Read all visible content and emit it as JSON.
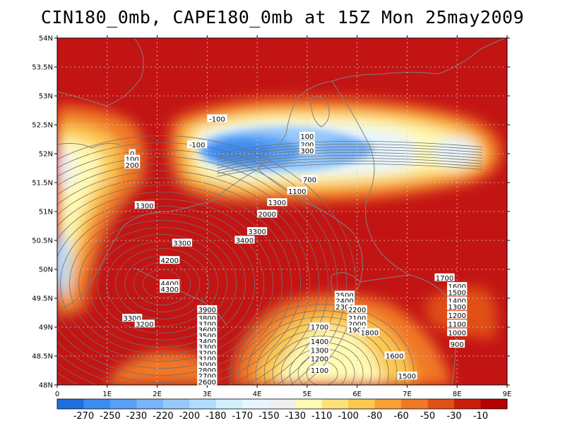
{
  "title": "CIN180_0mb, CAPE180_0mb at 15Z Mon 25may2009",
  "map": {
    "lon_range": [
      0,
      9
    ],
    "lat_range": [
      48,
      54
    ],
    "lon_ticks": [
      "0",
      "1E",
      "2E",
      "3E",
      "4E",
      "5E",
      "6E",
      "7E",
      "8E",
      "9E"
    ],
    "lat_ticks": [
      "48N",
      "48.5N",
      "49N",
      "49.5N",
      "50N",
      "50.5N",
      "51N",
      "51.5N",
      "52N",
      "52.5N",
      "53N",
      "53.5N",
      "54N"
    ],
    "grid": true,
    "background_color": "#c80000"
  },
  "colorbar": {
    "labels": [
      "-270",
      "-250",
      "-230",
      "-220",
      "-200",
      "-180",
      "-170",
      "-150",
      "-130",
      "-110",
      "-100",
      "-80",
      "-60",
      "-50",
      "-30",
      "-10"
    ],
    "colors": [
      "#1e6ee0",
      "#3c8cf0",
      "#5aa0f5",
      "#78b4f8",
      "#96c8fa",
      "#b4dcfc",
      "#d2f0fe",
      "#e6f5ff",
      "#f0f0f0",
      "#fffab4",
      "#fee17a",
      "#fcc850",
      "#f8a032",
      "#f07828",
      "#e05019",
      "#c81e0a",
      "#b40000"
    ]
  },
  "contour_labels": [
    {
      "text": "-100",
      "lon": 3.2,
      "lat": 52.6
    },
    {
      "text": "-100",
      "lon": 2.8,
      "lat": 52.15
    },
    {
      "text": "100",
      "lon": 5.0,
      "lat": 52.3
    },
    {
      "text": "200",
      "lon": 5.0,
      "lat": 52.15
    },
    {
      "text": "300",
      "lon": 5.0,
      "lat": 52.05
    },
    {
      "text": "700",
      "lon": 5.05,
      "lat": 51.55
    },
    {
      "text": "1100",
      "lon": 4.8,
      "lat": 51.35
    },
    {
      "text": "1300",
      "lon": 4.4,
      "lat": 51.15
    },
    {
      "text": "2000",
      "lon": 4.2,
      "lat": 50.95
    },
    {
      "text": "3300",
      "lon": 4.0,
      "lat": 50.65
    },
    {
      "text": "3400",
      "lon": 3.75,
      "lat": 50.5
    },
    {
      "text": "0",
      "lon": 1.5,
      "lat": 52.0
    },
    {
      "text": "100",
      "lon": 1.5,
      "lat": 51.9
    },
    {
      "text": "200",
      "lon": 1.5,
      "lat": 51.8
    },
    {
      "text": "1300",
      "lon": 1.75,
      "lat": 51.1
    },
    {
      "text": "3300",
      "lon": 2.5,
      "lat": 50.45
    },
    {
      "text": "4200",
      "lon": 2.25,
      "lat": 50.15
    },
    {
      "text": "4400",
      "lon": 2.25,
      "lat": 49.75
    },
    {
      "text": "4300",
      "lon": 2.25,
      "lat": 49.65
    },
    {
      "text": "3300",
      "lon": 1.5,
      "lat": 49.15
    },
    {
      "text": "3200",
      "lon": 1.75,
      "lat": 49.05
    },
    {
      "text": "3900",
      "lon": 3.0,
      "lat": 49.3
    },
    {
      "text": "3800",
      "lon": 3.0,
      "lat": 49.15
    },
    {
      "text": "3700",
      "lon": 3.0,
      "lat": 49.05
    },
    {
      "text": "3600",
      "lon": 3.0,
      "lat": 48.95
    },
    {
      "text": "3500",
      "lon": 3.0,
      "lat": 48.85
    },
    {
      "text": "3400",
      "lon": 3.0,
      "lat": 48.75
    },
    {
      "text": "3300",
      "lon": 3.0,
      "lat": 48.65
    },
    {
      "text": "3200",
      "lon": 3.0,
      "lat": 48.55
    },
    {
      "text": "3100",
      "lon": 3.0,
      "lat": 48.45
    },
    {
      "text": "3000",
      "lon": 3.0,
      "lat": 48.35
    },
    {
      "text": "2800",
      "lon": 3.0,
      "lat": 48.25
    },
    {
      "text": "2700",
      "lon": 3.0,
      "lat": 48.15
    },
    {
      "text": "2600",
      "lon": 3.0,
      "lat": 48.05
    },
    {
      "text": "2500",
      "lon": 5.75,
      "lat": 49.55
    },
    {
      "text": "2400",
      "lon": 5.75,
      "lat": 49.45
    },
    {
      "text": "2300",
      "lon": 5.75,
      "lat": 49.35
    },
    {
      "text": "2200",
      "lon": 6.0,
      "lat": 49.3
    },
    {
      "text": "2100",
      "lon": 6.0,
      "lat": 49.15
    },
    {
      "text": "2000",
      "lon": 6.0,
      "lat": 49.05
    },
    {
      "text": "1900",
      "lon": 6.0,
      "lat": 48.95
    },
    {
      "text": "1800",
      "lon": 6.25,
      "lat": 48.9
    },
    {
      "text": "1700",
      "lon": 5.25,
      "lat": 49.0
    },
    {
      "text": "1400",
      "lon": 5.25,
      "lat": 48.75
    },
    {
      "text": "1300",
      "lon": 5.25,
      "lat": 48.6
    },
    {
      "text": "1200",
      "lon": 5.25,
      "lat": 48.45
    },
    {
      "text": "1100",
      "lon": 5.25,
      "lat": 48.25
    },
    {
      "text": "1600",
      "lon": 6.75,
      "lat": 48.5
    },
    {
      "text": "1500",
      "lon": 7.0,
      "lat": 48.15
    },
    {
      "text": "1700",
      "lon": 7.75,
      "lat": 49.85
    },
    {
      "text": "1600",
      "lon": 8.0,
      "lat": 49.7
    },
    {
      "text": "1500",
      "lon": 8.0,
      "lat": 49.6
    },
    {
      "text": "1400",
      "lon": 8.0,
      "lat": 49.45
    },
    {
      "text": "1300",
      "lon": 8.0,
      "lat": 49.35
    },
    {
      "text": "1200",
      "lon": 8.0,
      "lat": 49.2
    },
    {
      "text": "1100",
      "lon": 8.0,
      "lat": 49.05
    },
    {
      "text": "1000",
      "lon": 8.0,
      "lat": 48.9
    },
    {
      "text": "900",
      "lon": 8.0,
      "lat": 48.7
    }
  ]
}
